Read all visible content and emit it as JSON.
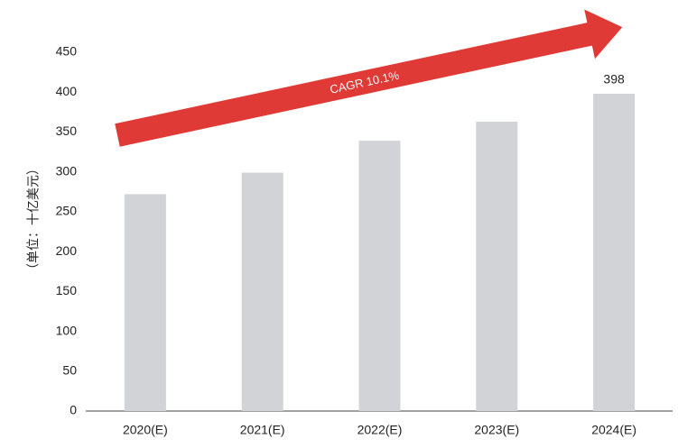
{
  "chart_data": {
    "type": "bar",
    "y_label": "（单位：十亿美元）",
    "annotation": "CAGR 10.1%",
    "categories": [
      "2020(E)",
      "2021(E)",
      "2022(E)",
      "2023(E)",
      "2024(E)"
    ],
    "values": [
      272,
      299,
      339,
      363,
      398
    ],
    "value_labels": [
      null,
      null,
      null,
      null,
      "398"
    ],
    "color": "#d1d3d6",
    "ylim": [
      0,
      450
    ],
    "yticks": [
      0,
      50,
      100,
      150,
      200,
      250,
      300,
      350,
      400,
      450
    ],
    "grid": false
  }
}
